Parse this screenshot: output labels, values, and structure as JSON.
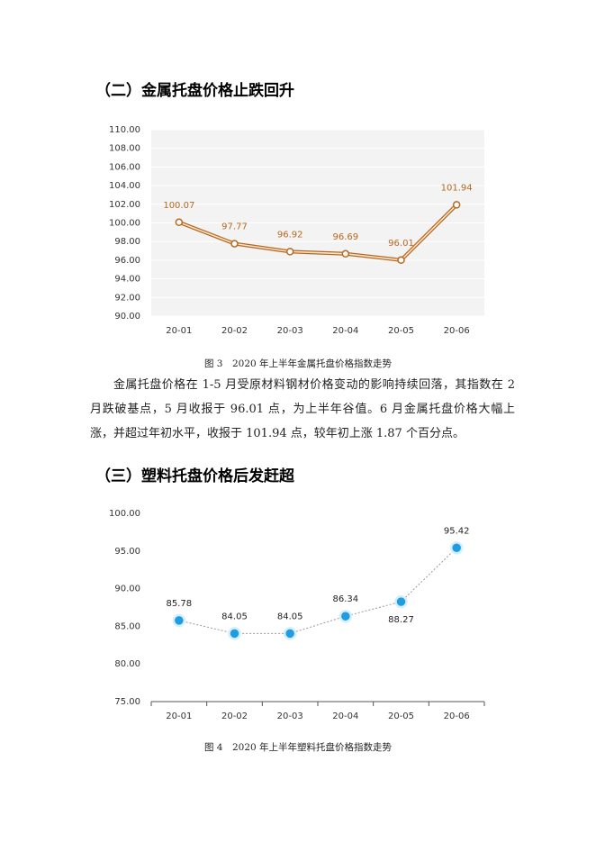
{
  "sections": [
    {
      "heading": "（二）金属托盘价格止跌回升",
      "caption": "图 3　2020 年上半年金属托盘价格指数走势",
      "paragraph": "金属托盘价格在 1-5 月受原材料钢材价格变动的影响持续回落，其指数在 2 月跌破基点，5 月收报于 96.01 点，为上半年谷值。6 月金属托盘价格大幅上涨，并超过年初水平，收报于 101.94 点，较年初上涨 1.87 个百分点。"
    },
    {
      "heading": "（三）塑料托盘价格后发赶超",
      "caption": "图 4　2020 年上半年塑料托盘价格指数走势"
    }
  ],
  "chart_data": [
    {
      "type": "line",
      "categories": [
        "20-01",
        "20-02",
        "20-03",
        "20-04",
        "20-05",
        "20-06"
      ],
      "values": [
        100.07,
        97.77,
        96.92,
        96.69,
        96.01,
        101.94
      ],
      "color": "#b8671e",
      "ylim": [
        90,
        110
      ],
      "yticks": [
        {
          "value": 90,
          "label": "90.00"
        },
        {
          "value": 92,
          "label": "92.00"
        },
        {
          "value": 94,
          "label": "94.00"
        },
        {
          "value": 96,
          "label": "96.00"
        },
        {
          "value": 98,
          "label": "98.00"
        },
        {
          "value": 100,
          "label": "100.00"
        },
        {
          "value": 102,
          "label": "102.00"
        },
        {
          "value": 104,
          "label": "104.00"
        },
        {
          "value": 106,
          "label": "106.00"
        },
        {
          "value": 108,
          "label": "108.00"
        },
        {
          "value": 110,
          "label": "110.00"
        }
      ],
      "grid": true
    },
    {
      "type": "line",
      "categories": [
        "20-01",
        "20-02",
        "20-03",
        "20-04",
        "20-05",
        "20-06"
      ],
      "values": [
        85.78,
        84.05,
        84.05,
        86.34,
        88.27,
        95.42
      ],
      "color": "#1e9de0",
      "ylim": [
        75,
        100
      ],
      "yticks": [
        {
          "value": 75,
          "label": "75.00"
        },
        {
          "value": 80,
          "label": "80.00"
        },
        {
          "value": 85,
          "label": "85.00"
        },
        {
          "value": 90,
          "label": "90.00"
        },
        {
          "value": 95,
          "label": "95.00"
        },
        {
          "value": 100,
          "label": "100.00"
        }
      ],
      "grid": false
    }
  ]
}
